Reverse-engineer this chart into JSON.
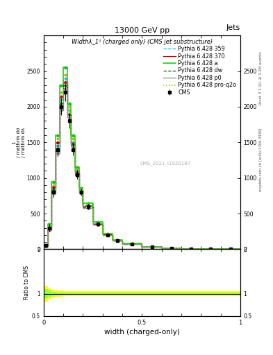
{
  "title_top": "13000 GeV pp",
  "title_right": "Jets",
  "plot_title": "Widthλ_1¹ (charged only) (CMS jet substructure)",
  "xlabel": "width (charged-only)",
  "ratio_ylabel": "Ratio to CMS",
  "watermark": "CMS_2021_I1920187",
  "right_label_top": "Rivet 3.1.10, ≥ 3.2M events",
  "right_label_bottom": "mcplots.cern.ch [arXiv:1306.3436]",
  "x_bins": [
    0.0,
    0.02,
    0.04,
    0.06,
    0.08,
    0.1,
    0.12,
    0.14,
    0.16,
    0.18,
    0.2,
    0.25,
    0.3,
    0.35,
    0.4,
    0.5,
    0.6,
    0.7,
    0.8,
    0.9,
    1.0
  ],
  "cms_y": [
    0.05,
    0.3,
    0.8,
    1.4,
    2.0,
    2.2,
    1.8,
    1.4,
    1.05,
    0.8,
    0.6,
    0.35,
    0.2,
    0.12,
    0.07,
    0.03,
    0.015,
    0.007,
    0.003,
    0.001
  ],
  "cms_yerr": [
    0.03,
    0.05,
    0.08,
    0.1,
    0.12,
    0.12,
    0.1,
    0.08,
    0.06,
    0.05,
    0.04,
    0.025,
    0.015,
    0.01,
    0.007,
    0.004,
    0.002,
    0.001,
    0.0005,
    0.0002
  ],
  "p359_y": [
    0.04,
    0.28,
    0.85,
    1.45,
    2.1,
    2.4,
    1.95,
    1.5,
    1.1,
    0.82,
    0.62,
    0.36,
    0.21,
    0.13,
    0.075,
    0.032,
    0.016,
    0.0075,
    0.0032,
    0.0012
  ],
  "p370_y": [
    0.05,
    0.32,
    0.88,
    1.5,
    2.15,
    2.35,
    1.9,
    1.48,
    1.08,
    0.81,
    0.61,
    0.355,
    0.205,
    0.125,
    0.072,
    0.031,
    0.0155,
    0.0072,
    0.0031,
    0.0011
  ],
  "pa_y": [
    0.06,
    0.35,
    0.95,
    1.6,
    2.3,
    2.55,
    2.05,
    1.6,
    1.15,
    0.86,
    0.65,
    0.38,
    0.22,
    0.135,
    0.078,
    0.033,
    0.0165,
    0.0077,
    0.0033,
    0.0012
  ],
  "pdw_y": [
    0.045,
    0.3,
    0.83,
    1.42,
    2.05,
    2.3,
    1.88,
    1.46,
    1.06,
    0.79,
    0.59,
    0.345,
    0.2,
    0.122,
    0.07,
    0.03,
    0.0152,
    0.0071,
    0.003,
    0.0011
  ],
  "pp0_y": [
    0.04,
    0.27,
    0.78,
    1.35,
    1.95,
    2.25,
    1.85,
    1.44,
    1.04,
    0.78,
    0.58,
    0.34,
    0.195,
    0.118,
    0.068,
    0.029,
    0.0148,
    0.0069,
    0.0029,
    0.001
  ],
  "pq2o_y": [
    0.055,
    0.33,
    0.9,
    1.55,
    2.2,
    2.45,
    2.0,
    1.55,
    1.12,
    0.84,
    0.63,
    0.37,
    0.215,
    0.13,
    0.075,
    0.032,
    0.016,
    0.0074,
    0.0032,
    0.0012
  ],
  "ratio_band_yellow_lo": [
    0.82,
    0.88,
    0.92,
    0.93,
    0.93,
    0.94,
    0.95,
    0.95,
    0.95,
    0.95,
    0.95,
    0.95,
    0.95,
    0.95,
    0.95,
    0.95,
    0.95,
    0.95,
    0.95,
    0.95
  ],
  "ratio_band_yellow_hi": [
    1.18,
    1.12,
    1.08,
    1.07,
    1.07,
    1.06,
    1.05,
    1.05,
    1.05,
    1.05,
    1.05,
    1.05,
    1.05,
    1.05,
    1.05,
    1.05,
    1.05,
    1.05,
    1.05,
    1.05
  ],
  "ratio_band_green_lo": [
    0.9,
    0.93,
    0.96,
    0.97,
    0.97,
    0.975,
    0.98,
    0.98,
    0.98,
    0.98,
    0.98,
    0.98,
    0.98,
    0.98,
    0.98,
    0.98,
    0.98,
    0.98,
    0.98,
    0.98
  ],
  "ratio_band_green_hi": [
    1.1,
    1.07,
    1.04,
    1.03,
    1.03,
    1.025,
    1.02,
    1.02,
    1.02,
    1.02,
    1.02,
    1.02,
    1.02,
    1.02,
    1.02,
    1.02,
    1.02,
    1.02,
    1.02,
    1.02
  ],
  "color_cms": "#000000",
  "color_p359": "#00CCCC",
  "color_p370": "#CC0000",
  "color_pa": "#00CC00",
  "color_pdw": "#006600",
  "color_pp0": "#888888",
  "color_pq2o": "#88CC00",
  "ylim_main_max": 3.0,
  "ylim_ratio": [
    0.5,
    2.0
  ],
  "xlim": [
    0.0,
    1.0
  ],
  "bg_color": "#ffffff"
}
